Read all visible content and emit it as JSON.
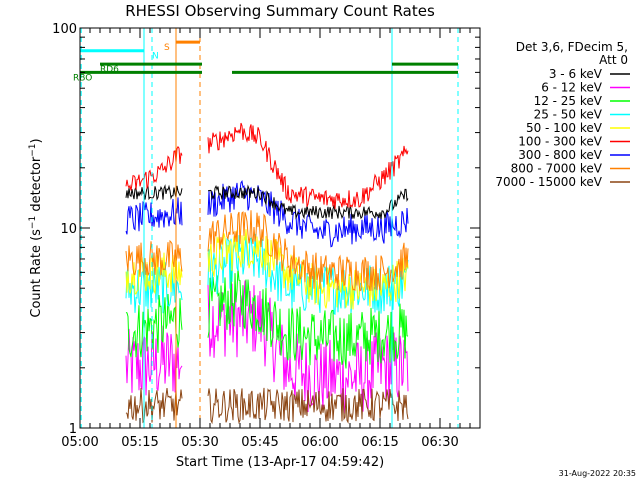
{
  "chart_data": {
    "type": "line",
    "title": "RHESSI Observing Summary Count Rates",
    "xlabel": "Start Time (13-Apr-17 04:59:42)",
    "ylabel": "Count Rate (s⁻¹ detector⁻¹)",
    "ylabel_parts": [
      "Count Rate (s",
      "−1",
      " detector",
      "−1",
      ")"
    ],
    "y_scale": "log",
    "ylim": [
      1,
      100
    ],
    "y_ticks": [
      {
        "value": 1,
        "label": "1"
      },
      {
        "value": 10,
        "label": "10"
      },
      {
        "value": 100,
        "label": "100"
      }
    ],
    "xlim_minutes": [
      0,
      100
    ],
    "x_ticks": [
      {
        "minute": 0,
        "label": "05:00"
      },
      {
        "minute": 15,
        "label": "05:15"
      },
      {
        "minute": 30,
        "label": "05:30"
      },
      {
        "minute": 45,
        "label": "05:45"
      },
      {
        "minute": 60,
        "label": "06:00"
      },
      {
        "minute": 75,
        "label": "06:15"
      },
      {
        "minute": 90,
        "label": "06:30"
      }
    ],
    "legend_header": [
      "Det 3,6, FDecim 5,",
      "Att 0"
    ],
    "legend_position": "right",
    "series": [
      {
        "name": "3 - 6 keV",
        "color": "#000000"
      },
      {
        "name": "6 - 12 keV",
        "color": "#ff00ff"
      },
      {
        "name": "12 - 25 keV",
        "color": "#00ff00"
      },
      {
        "name": "25 - 50 keV",
        "color": "#00ffff"
      },
      {
        "name": "50 - 100 keV",
        "color": "#ffff00"
      },
      {
        "name": "100 - 300 keV",
        "color": "#ff0000"
      },
      {
        "name": "300 - 800 keV",
        "color": "#0000ff"
      },
      {
        "name": "800 - 7000 keV",
        "color": "#ff8000"
      },
      {
        "name": "7000 - 15000 keV",
        "color": "#8b4513"
      }
    ],
    "data_gaps_minutes": [
      [
        0,
        12
      ],
      [
        25.5,
        32
      ],
      [
        82,
        100
      ]
    ],
    "flag_bars": [
      {
        "label": "N",
        "color": "#00ffff",
        "level": 77,
        "segments": [
          [
            0,
            16
          ]
        ],
        "label_at": 18
      },
      {
        "label": "S",
        "color": "#ff8000",
        "level": 85,
        "segments": [
          [
            24,
            30
          ]
        ],
        "label_at": 21
      },
      {
        "label": "RBO",
        "color": "#008000",
        "level": 60,
        "segments": [
          [
            0,
            30.5
          ],
          [
            38,
            49.5
          ],
          [
            49.5,
            73
          ],
          [
            73,
            94.5
          ]
        ],
        "label_at": 0
      },
      {
        "label": "RD6",
        "color": "#008000",
        "level": 66,
        "segments": [
          [
            5,
            30.5
          ],
          [
            78,
            94.5
          ]
        ],
        "label_at": 5
      }
    ],
    "saa_intervals_minutes": [
      [
        0,
        0.3
      ],
      [
        16,
        18
      ]
    ],
    "night_intervals_minutes": [
      [
        24,
        30
      ],
      [
        78,
        94.5
      ]
    ],
    "footer_date": "31-Aug-2022 20:35"
  }
}
